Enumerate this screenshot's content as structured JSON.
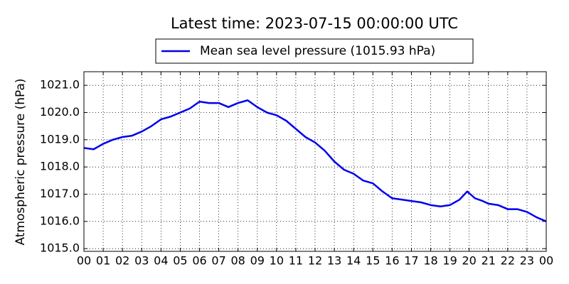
{
  "chart_data": {
    "type": "line",
    "title": "Latest time: 2023-07-15 00:00:00 UTC",
    "ylabel": "Atmospheric pressure (hPa)",
    "legend": "upper center",
    "grid": true,
    "x": [
      0,
      0.5,
      1,
      1.5,
      2,
      2.5,
      3,
      3.5,
      4,
      4.5,
      5,
      5.5,
      6,
      6.5,
      7,
      7.5,
      8,
      8.5,
      9,
      9.5,
      10,
      10.5,
      11,
      11.5,
      12,
      12.5,
      13,
      13.5,
      14,
      14.5,
      15,
      15.5,
      16,
      16.5,
      17,
      17.5,
      18,
      18.5,
      19,
      19.5,
      19.9,
      20.3,
      20.7,
      21,
      21.5,
      22,
      22.5,
      23,
      23.5,
      24
    ],
    "series": [
      {
        "name": "Mean sea level pressure (1015.93 hPa)",
        "color": "#0000ee",
        "values": [
          1018.7,
          1018.65,
          1018.85,
          1019.0,
          1019.1,
          1019.15,
          1019.3,
          1019.5,
          1019.75,
          1019.85,
          1020.0,
          1020.15,
          1020.4,
          1020.35,
          1020.35,
          1020.2,
          1020.35,
          1020.45,
          1020.2,
          1020.0,
          1019.9,
          1019.7,
          1019.4,
          1019.1,
          1018.9,
          1018.6,
          1018.2,
          1017.9,
          1017.75,
          1017.5,
          1017.4,
          1017.1,
          1016.85,
          1016.8,
          1016.75,
          1016.7,
          1016.6,
          1016.55,
          1016.6,
          1016.8,
          1017.1,
          1016.85,
          1016.75,
          1016.65,
          1016.6,
          1016.45,
          1016.45,
          1016.35,
          1016.15,
          1016.0
        ]
      }
    ],
    "xlim": [
      0,
      24
    ],
    "xticks": [
      {
        "value": 0,
        "label": "00"
      },
      {
        "value": 1,
        "label": "01"
      },
      {
        "value": 2,
        "label": "02"
      },
      {
        "value": 3,
        "label": "03"
      },
      {
        "value": 4,
        "label": "04"
      },
      {
        "value": 5,
        "label": "05"
      },
      {
        "value": 6,
        "label": "06"
      },
      {
        "value": 7,
        "label": "07"
      },
      {
        "value": 8,
        "label": "08"
      },
      {
        "value": 9,
        "label": "09"
      },
      {
        "value": 10,
        "label": "10"
      },
      {
        "value": 11,
        "label": "11"
      },
      {
        "value": 12,
        "label": "12"
      },
      {
        "value": 13,
        "label": "13"
      },
      {
        "value": 14,
        "label": "14"
      },
      {
        "value": 15,
        "label": "15"
      },
      {
        "value": 16,
        "label": "16"
      },
      {
        "value": 17,
        "label": "17"
      },
      {
        "value": 18,
        "label": "18"
      },
      {
        "value": 19,
        "label": "19"
      },
      {
        "value": 20,
        "label": "20"
      },
      {
        "value": 21,
        "label": "21"
      },
      {
        "value": 22,
        "label": "22"
      },
      {
        "value": 23,
        "label": "23"
      },
      {
        "value": 24,
        "label": "00"
      }
    ],
    "ylim": [
      1014.9,
      1021.5
    ],
    "yticks": [
      {
        "value": 1015,
        "label": "1015.0"
      },
      {
        "value": 1016,
        "label": "1016.0"
      },
      {
        "value": 1017,
        "label": "1017.0"
      },
      {
        "value": 1018,
        "label": "1018.0"
      },
      {
        "value": 1019,
        "label": "1019.0"
      },
      {
        "value": 1020,
        "label": "1020.0"
      },
      {
        "value": 1021,
        "label": "1021.0"
      }
    ]
  }
}
